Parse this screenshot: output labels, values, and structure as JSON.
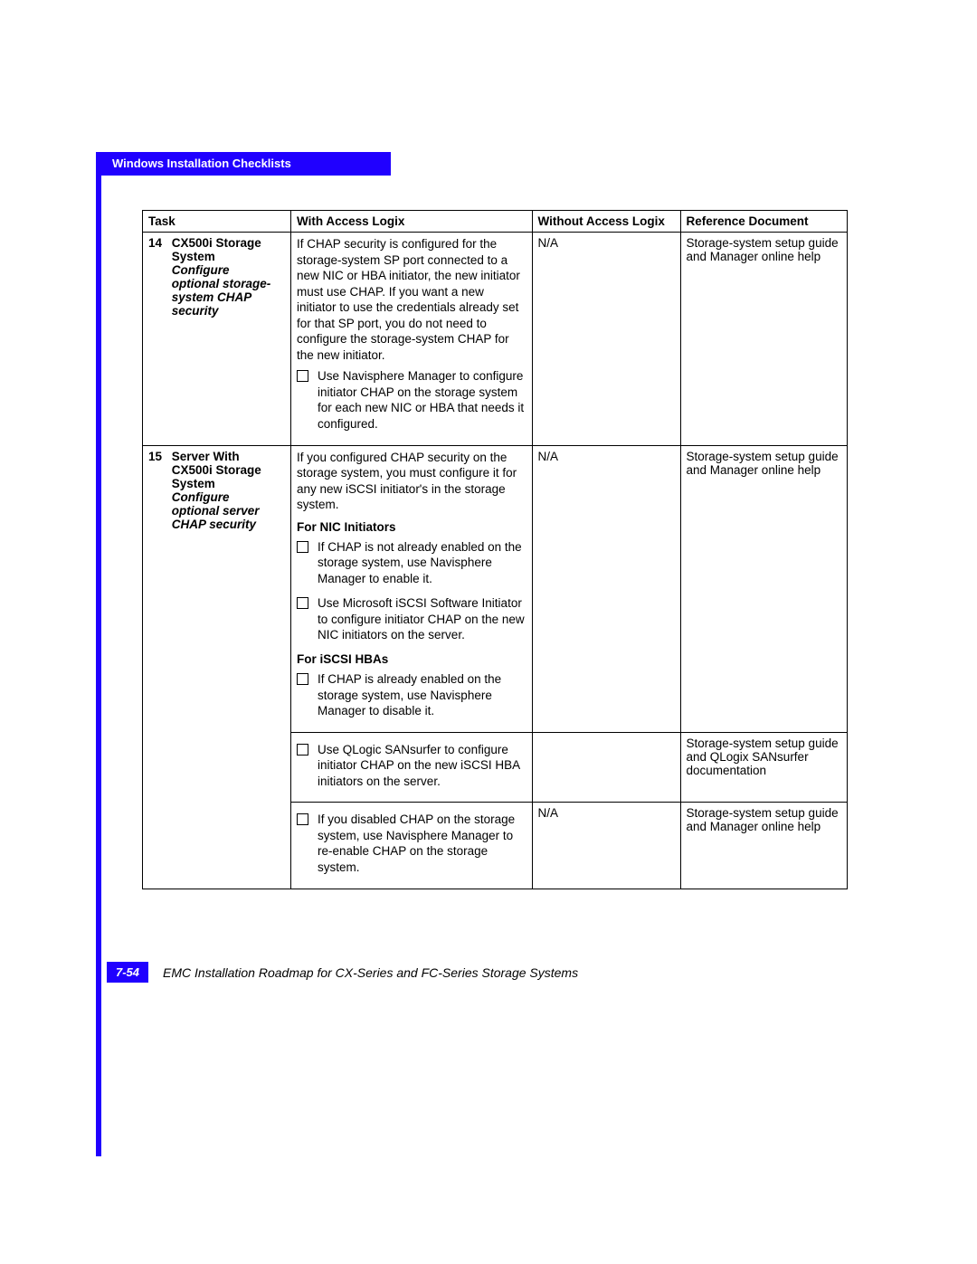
{
  "section_title": "Windows Installation Checklists",
  "table": {
    "headers": {
      "task": "Task",
      "with": "With Access Logix",
      "without": "Without Access Logix",
      "ref": "Reference Document"
    },
    "row14": {
      "num": "14",
      "title": "CX500i Storage System",
      "sub": "Configure optional storage-system CHAP security",
      "with_intro": "If CHAP security is configured for the storage-system SP port connected to a new NIC or HBA initiator, the new initiator must use CHAP. If you want a new initiator to use the credentials already set for that SP port, you do not need to configure the storage-system CHAP for the new initiator.",
      "with_item1": "Use Navisphere Manager to configure initiator CHAP on the storage system for each new NIC or HBA that needs it configured.",
      "without": "N/A",
      "ref": "Storage-system setup guide and Manager online help"
    },
    "row15": {
      "num": "15",
      "title": "Server With CX500i Storage System",
      "sub": "Configure optional server CHAP security",
      "with_intro": "If you configured CHAP security on the storage system, you must configure it for any new iSCSI initiator's in the storage system.",
      "nic_header": "For NIC Initiators",
      "nic_item1": "If CHAP is not already enabled on the storage system, use Navisphere Manager to enable it.",
      "nic_item2": "Use Microsoft iSCSI Software Initiator to configure initiator CHAP on the new NIC initiators on the server.",
      "hba_header": "For iSCSI HBAs",
      "hba_item1": "If CHAP is already enabled on the storage system, use Navisphere Manager to disable it.",
      "hba_item2": "Use QLogic SANsurfer to configure initiator CHAP on the new iSCSI HBA initiators on the server.",
      "hba_item3": "If you disabled CHAP on the storage system, use Navisphere Manager to re-enable CHAP on the storage system.",
      "without_top": "N/A",
      "without_bottom": "N/A",
      "ref_top": "Storage-system setup guide and Manager online help",
      "ref_mid": "Storage-system setup guide and QLogix SANsurfer documentation",
      "ref_bottom": "Storage-system setup guide and Manager online help"
    }
  },
  "footer": {
    "page": "7-54",
    "title": "EMC Installation Roadmap for CX-Series and FC-Series Storage Systems"
  },
  "colors": {
    "blue": "#2000ff",
    "white": "#ffffff",
    "black": "#000000"
  }
}
